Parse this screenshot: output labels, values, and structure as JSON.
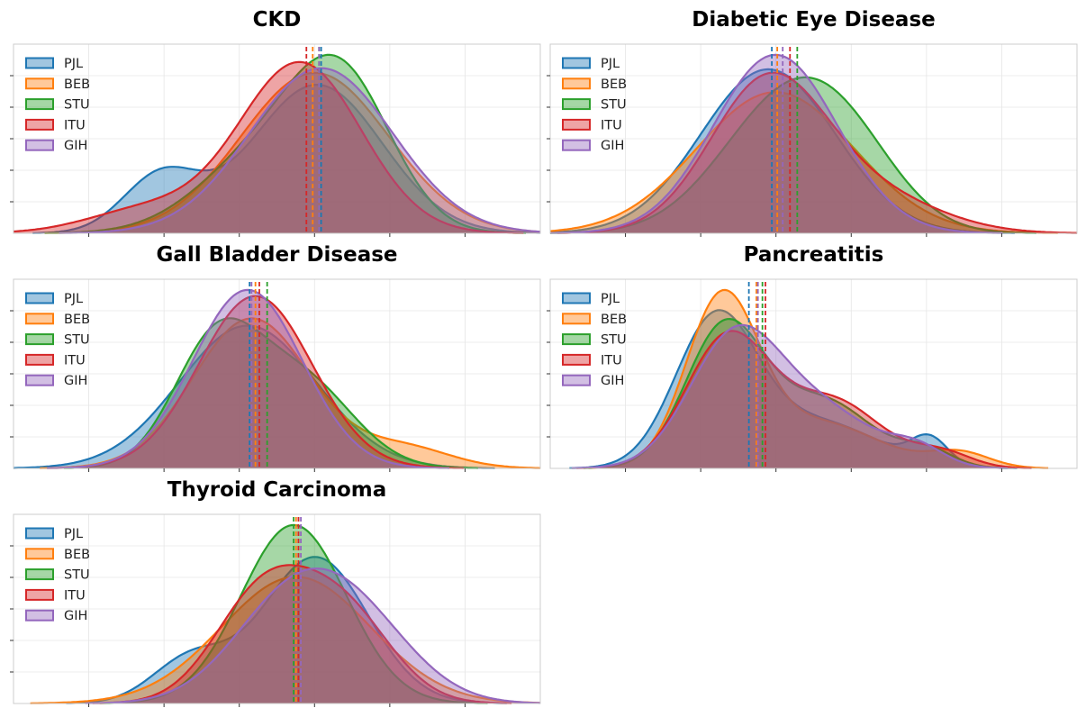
{
  "figure": {
    "panel_count": 5,
    "layout": "3 rows x 2 columns, last cell empty"
  },
  "chart_data": [
    {
      "type": "area",
      "title": "CKD",
      "xlabel": "",
      "ylabel": "",
      "xlim": [
        -0.2,
        12.3
      ],
      "grid": true,
      "legend_position": "top-left",
      "series": [
        {
          "name": "PJL",
          "color": "#1f77b4",
          "mean": 7.1,
          "components": [
            [
              0.82,
              7.0,
              1.55
            ],
            [
              0.18,
              3.3,
              0.9
            ]
          ]
        },
        {
          "name": "BEB",
          "color": "#ff7f0e",
          "mean": 6.9,
          "components": [
            [
              1.0,
              6.95,
              1.75
            ]
          ]
        },
        {
          "name": "STU",
          "color": "#2ca02c",
          "mean": 7.05,
          "components": [
            [
              0.6,
              7.6,
              1.2
            ],
            [
              0.4,
              5.7,
              1.5
            ]
          ]
        },
        {
          "name": "ITU",
          "color": "#d62728",
          "mean": 6.75,
          "components": [
            [
              0.88,
              6.6,
              1.45
            ],
            [
              0.12,
              3.0,
              1.4
            ]
          ]
        },
        {
          "name": "GIH",
          "color": "#9467bd",
          "mean": 7.05,
          "components": [
            [
              1.0,
              7.1,
              1.7
            ]
          ]
        }
      ]
    },
    {
      "type": "area",
      "title": "Diabetic Eye Disease",
      "xlabel": "",
      "ylabel": "",
      "xlim": [
        -0.2,
        14.3
      ],
      "grid": true,
      "legend_position": "top-left",
      "series": [
        {
          "name": "PJL",
          "color": "#1f77b4",
          "mean": 5.9,
          "components": [
            [
              1.0,
              5.8,
              1.85
            ]
          ]
        },
        {
          "name": "BEB",
          "color": "#ff7f0e",
          "mean": 6.05,
          "components": [
            [
              1.0,
              6.0,
              2.15
            ]
          ]
        },
        {
          "name": "STU",
          "color": "#2ca02c",
          "mean": 6.6,
          "components": [
            [
              0.72,
              6.2,
              1.8
            ],
            [
              0.28,
              8.0,
              1.5
            ]
          ]
        },
        {
          "name": "ITU",
          "color": "#d62728",
          "mean": 6.4,
          "components": [
            [
              0.8,
              5.8,
              1.6
            ],
            [
              0.2,
              8.8,
              1.8
            ]
          ]
        },
        {
          "name": "GIH",
          "color": "#9467bd",
          "mean": 6.2,
          "components": [
            [
              1.0,
              6.0,
              1.7
            ]
          ]
        }
      ]
    },
    {
      "type": "area",
      "title": "Gall Bladder Disease",
      "xlabel": "",
      "ylabel": "",
      "xlim": [
        -0.2,
        13.3
      ],
      "grid": true,
      "legend_position": "top-left",
      "series": [
        {
          "name": "PJL",
          "color": "#1f77b4",
          "mean": 5.85,
          "components": [
            [
              1.0,
              5.8,
              1.75
            ]
          ]
        },
        {
          "name": "BEB",
          "color": "#ff7f0e",
          "mean": 6.0,
          "components": [
            [
              0.9,
              5.9,
              1.5
            ],
            [
              0.1,
              9.8,
              1.2
            ]
          ]
        },
        {
          "name": "STU",
          "color": "#2ca02c",
          "mean": 6.3,
          "components": [
            [
              0.55,
              5.0,
              1.1
            ],
            [
              0.45,
              7.2,
              1.3
            ]
          ]
        },
        {
          "name": "ITU",
          "color": "#d62728",
          "mean": 6.1,
          "components": [
            [
              1.0,
              6.0,
              1.45
            ]
          ]
        },
        {
          "name": "GIH",
          "color": "#9467bd",
          "mean": 5.9,
          "components": [
            [
              1.0,
              5.8,
              1.4
            ]
          ]
        }
      ]
    },
    {
      "type": "area",
      "title": "Pancreatitis",
      "xlabel": "",
      "ylabel": "",
      "xlim": [
        -0.2,
        17.3
      ],
      "grid": true,
      "legend_position": "top-left",
      "series": [
        {
          "name": "PJL",
          "color": "#1f77b4",
          "mean": 6.4,
          "components": [
            [
              0.65,
              5.3,
              1.35
            ],
            [
              0.3,
              8.7,
              2.0
            ],
            [
              0.05,
              12.4,
              0.6
            ]
          ]
        },
        {
          "name": "BEB",
          "color": "#ff7f0e",
          "mean": 6.65,
          "components": [
            [
              0.65,
              5.5,
              1.2
            ],
            [
              0.3,
              8.7,
              2.0
            ],
            [
              0.05,
              13.4,
              1.0
            ]
          ]
        },
        {
          "name": "STU",
          "color": "#2ca02c",
          "mean": 6.85,
          "components": [
            [
              0.6,
              5.6,
              1.3
            ],
            [
              0.35,
              8.9,
              1.6
            ],
            [
              0.05,
              12.3,
              0.9
            ]
          ]
        },
        {
          "name": "ITU",
          "color": "#d62728",
          "mean": 6.95,
          "components": [
            [
              0.6,
              5.7,
              1.4
            ],
            [
              0.35,
              9.2,
              1.6
            ],
            [
              0.05,
              12.8,
              1.0
            ]
          ]
        },
        {
          "name": "GIH",
          "color": "#9467bd",
          "mean": 6.7,
          "components": [
            [
              0.62,
              5.9,
              1.5
            ],
            [
              0.33,
              8.8,
              1.8
            ],
            [
              0.05,
              12.0,
              0.9
            ]
          ]
        }
      ]
    },
    {
      "type": "area",
      "title": "Thyroid Carcinoma",
      "xlabel": "",
      "ylabel": "",
      "xlim": [
        -0.2,
        10.8
      ],
      "grid": true,
      "legend_position": "top-left",
      "series": [
        {
          "name": "PJL",
          "color": "#1f77b4",
          "mean": 5.75,
          "components": [
            [
              0.82,
              6.1,
              1.1
            ],
            [
              0.18,
              3.5,
              0.8
            ]
          ]
        },
        {
          "name": "BEB",
          "color": "#ff7f0e",
          "mean": 5.7,
          "components": [
            [
              1.0,
              5.7,
              1.55
            ]
          ]
        },
        {
          "name": "STU",
          "color": "#2ca02c",
          "mean": 5.65,
          "components": [
            [
              1.0,
              5.65,
              1.1
            ]
          ]
        },
        {
          "name": "ITU",
          "color": "#d62728",
          "mean": 5.75,
          "components": [
            [
              0.55,
              5.0,
              1.0
            ],
            [
              0.45,
              6.7,
              1.0
            ]
          ]
        },
        {
          "name": "GIH",
          "color": "#9467bd",
          "mean": 5.8,
          "components": [
            [
              0.55,
              5.5,
              1.2
            ],
            [
              0.45,
              7.0,
              1.2
            ]
          ]
        }
      ]
    }
  ]
}
